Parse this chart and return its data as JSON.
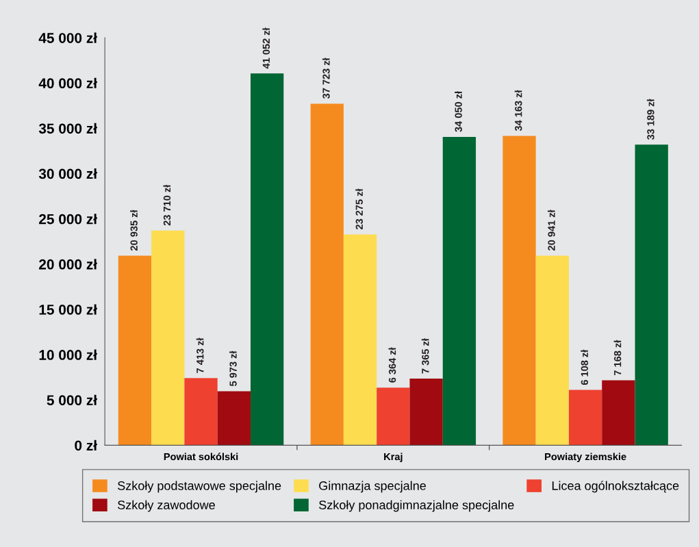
{
  "chart_data": {
    "type": "bar",
    "categories": [
      "Powiat sokólski",
      "Kraj",
      "Powiaty ziemskie"
    ],
    "series": [
      {
        "name": "Szkoły podstawowe specjalne",
        "color": "#f58b1f",
        "values": [
          20935,
          37723,
          34163
        ],
        "value_labels": [
          "20 935 zł",
          "37 723 zł",
          "34 163 zł"
        ]
      },
      {
        "name": "Gimnazja specjalne",
        "color": "#fddc4f",
        "values": [
          23710,
          23275,
          20941
        ],
        "value_labels": [
          "23 710 zł",
          "23 275 zł",
          "20 941 zł"
        ]
      },
      {
        "name": "Licea ogólnokształcące",
        "color": "#ef4130",
        "values": [
          7413,
          6364,
          6108
        ],
        "value_labels": [
          "7 413 zł",
          "6 364 zł",
          "6 108 zł"
        ]
      },
      {
        "name": "Szkoły zawodowe",
        "color": "#a00a10",
        "values": [
          5973,
          7365,
          7168
        ],
        "value_labels": [
          "5 973 zł",
          "7 365 zł",
          "7 168 zł"
        ]
      },
      {
        "name": "Szkoły ponadgimnazjalne specjalne",
        "color": "#006633",
        "values": [
          41052,
          34050,
          33189
        ],
        "value_labels": [
          "41 052 zł",
          "34 050 zł",
          "33 189 zł"
        ]
      }
    ],
    "ylim": [
      0,
      45000
    ],
    "yticks": [
      {
        "value": 0,
        "label": "0 zł"
      },
      {
        "value": 5000,
        "label": "5 000 zł"
      },
      {
        "value": 10000,
        "label": "10 000 zł"
      },
      {
        "value": 15000,
        "label": "15 000 zł"
      },
      {
        "value": 20000,
        "label": "20 000 zł"
      },
      {
        "value": 25000,
        "label": "25 000 zł"
      },
      {
        "value": 30000,
        "label": "30 000 zł"
      },
      {
        "value": 35000,
        "label": "35 000 zł"
      },
      {
        "value": 40000,
        "label": "40 000 zł"
      },
      {
        "value": 45000,
        "label": "45 000 zł"
      }
    ],
    "grid": false,
    "legend": "bottom"
  }
}
